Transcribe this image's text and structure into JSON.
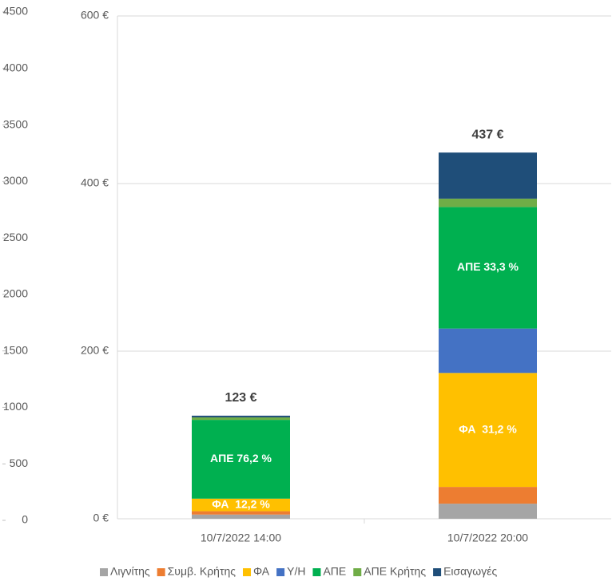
{
  "chart_data": {
    "type": "stacked_bar",
    "categories": [
      "10/7/2022 14:00",
      "10/7/2022 20:00"
    ],
    "ylim": [
      0,
      4500
    ],
    "yticks": [
      0,
      500,
      1000,
      1500,
      2000,
      2500,
      3000,
      3500,
      4000,
      4500
    ],
    "y2lim": [
      0,
      600
    ],
    "y2ticks": [
      {
        "value": 0,
        "label": "0 €"
      },
      {
        "value": 200,
        "label": "200 €"
      },
      {
        "value": 400,
        "label": "400 €"
      },
      {
        "value": 600,
        "label": "600 €"
      }
    ],
    "grid": true,
    "legend": "bottom",
    "series": [
      {
        "name": "Λιγνίτης",
        "color": "#a5a5a5",
        "axis": "y2",
        "values": [
          5,
          18
        ]
      },
      {
        "name": "Συμβ. Κρήτης",
        "color": "#ed7d31",
        "axis": "y2",
        "values": [
          4,
          20
        ]
      },
      {
        "name": "ΦΑ",
        "color": "#ffc000",
        "axis": "y2",
        "values": [
          15,
          136
        ]
      },
      {
        "name": "Υ/Η",
        "color": "#4472c4",
        "axis": "y2",
        "values": [
          0,
          53
        ]
      },
      {
        "name": "ΑΠΕ",
        "color": "#00b050",
        "axis": "y2",
        "values": [
          94,
          145
        ]
      },
      {
        "name": "ΑΠΕ Κρήτης",
        "color": "#70ad47",
        "axis": "y2",
        "values": [
          3,
          10
        ]
      },
      {
        "name": "Εισαγωγές",
        "color": "#1f4e79",
        "axis": "y2",
        "values": [
          2,
          55
        ]
      }
    ],
    "total_labels": [
      "123 €",
      "437 €"
    ],
    "annotations": [
      {
        "text": "ΦΑ  12,2 %",
        "series": 2,
        "index": 0
      },
      {
        "text": "ΑΠΕ 76,2 %",
        "series": 4,
        "index": 0
      },
      {
        "text": "ΦΑ  31,2 %",
        "series": 2,
        "index": 1
      },
      {
        "text": "ΑΠΕ 33,3 %",
        "series": 4,
        "index": 1
      }
    ]
  }
}
